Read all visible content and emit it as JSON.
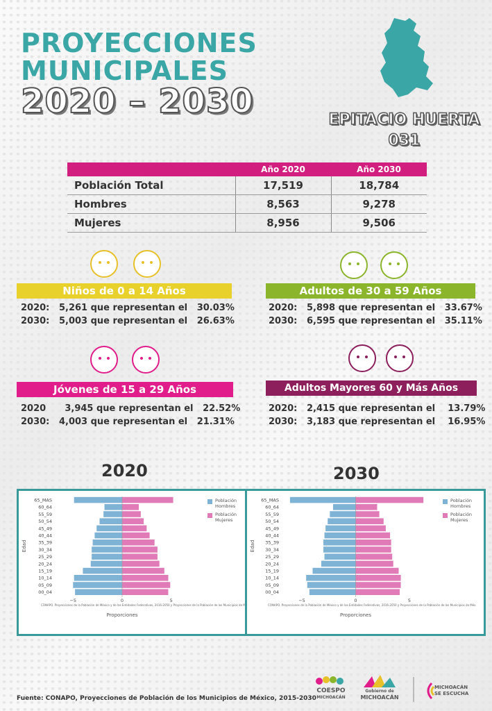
{
  "header": {
    "title_line1": "PROYECCIONES",
    "title_line2": "MUNICIPALES",
    "title_line3": "2020 – 2030",
    "municipality": "EPITACIO HUERTA",
    "code": "031"
  },
  "table": {
    "col_2020": "Año 2020",
    "col_2030": "Año 2030",
    "rows": [
      {
        "label": "Población Total",
        "v2020": "17,519",
        "v2030": "18,784"
      },
      {
        "label": "Hombres",
        "v2020": "8,563",
        "v2030": "9,278"
      },
      {
        "label": "Mujeres",
        "v2020": "8,956",
        "v2030": "9,506"
      }
    ]
  },
  "groups": {
    "ninos": {
      "title": "Niños de 0 a 14 Años",
      "color": "#e8d12a",
      "l1": {
        "year": "2020:",
        "text": "5,261 que representan el",
        "pct": "30.03%"
      },
      "l2": {
        "year": "2030:",
        "text": "5,003 que representan el",
        "pct": "26.63%"
      }
    },
    "adultos": {
      "title": "Adultos de 30 a 59 Años",
      "color": "#8bb52a",
      "l1": {
        "year": "2020:",
        "text": "5,898 que representan el",
        "pct": "33.67%"
      },
      "l2": {
        "year": "2030:",
        "text": "6,595 que representan el",
        "pct": "35.11%"
      }
    },
    "jovenes": {
      "title": "Jóvenes de 15 a 29 Años",
      "color": "#e01d8a",
      "l1": {
        "year": "2020",
        "text": "3,945 que representan el",
        "pct": "22.52%"
      },
      "l2": {
        "year": "2030:",
        "text": "4,003 que representan el",
        "pct": "21.31%"
      }
    },
    "mayores": {
      "title": "Adultos Mayores  60 y Más Años",
      "color": "#8c1f5c",
      "l1": {
        "year": "2020:",
        "text": "2,415 que representan el",
        "pct": "13.79%"
      },
      "l2": {
        "year": "2030:",
        "text": "3,183 que representan el",
        "pct": "16.95%"
      }
    }
  },
  "chart_data": [
    {
      "type": "bar",
      "title": "2020",
      "xlabel": "Proporciones",
      "ylabel": "Edad",
      "xlim": [
        -7,
        7
      ],
      "categories": [
        "65_MAS",
        "60_64",
        "55_59",
        "50_54",
        "45_49",
        "40_44",
        "35_39",
        "30_34",
        "25_29",
        "20_24",
        "15_19",
        "10_14",
        "05_09",
        "00_04"
      ],
      "series": [
        {
          "name": "Población Hombres",
          "values": [
            -4.9,
            -1.8,
            -1.9,
            -2.3,
            -2.6,
            -2.8,
            -3.0,
            -3.1,
            -3.1,
            -3.2,
            -4.0,
            -4.9,
            -5.0,
            -4.8
          ]
        },
        {
          "name": "Población Mujeres",
          "values": [
            5.2,
            1.7,
            1.9,
            2.2,
            2.5,
            2.8,
            3.3,
            3.6,
            3.6,
            3.8,
            4.3,
            4.7,
            4.9,
            4.7
          ]
        }
      ],
      "xticks": [
        "−5",
        "0",
        "5"
      ],
      "note": "CONAPO. Proyecciones de la Población de México y de las Entidades Federativas, 2016-2050 y Proyecciones de la Población de los Municipios de Méx"
    },
    {
      "type": "bar",
      "title": "2030",
      "xlabel": "Proporciones",
      "ylabel": "Edad",
      "xlim": [
        -7,
        7
      ],
      "categories": [
        "65_MAS",
        "60_64",
        "55_59",
        "50_54",
        "45_49",
        "40_44",
        "35_39",
        "30_34",
        "25_29",
        "20_24",
        "15_19",
        "10_14",
        "05_09",
        "00_04"
      ],
      "series": [
        {
          "name": "Población Hombres",
          "values": [
            -6.1,
            -2.1,
            -2.4,
            -2.6,
            -2.8,
            -2.9,
            -3.0,
            -3.0,
            -2.9,
            -3.2,
            -4.0,
            -4.6,
            -4.5,
            -4.3
          ]
        },
        {
          "name": "Población Mujeres",
          "values": [
            6.3,
            2.0,
            2.2,
            2.6,
            2.8,
            3.2,
            3.3,
            3.3,
            3.4,
            3.5,
            4.0,
            4.2,
            4.2,
            4.1
          ]
        }
      ],
      "xticks": [
        "−5",
        "0",
        "5"
      ],
      "note": "CONAPO. Proyecciones de la Población de México y de las Entidades Federativas, 2016-2050 y Proyecciones de la Población de los Municipios de Méx"
    }
  ],
  "source": "Fuente: CONAPO, Proyecciones de Población de los Municipios de México, 2015-2030",
  "logos": {
    "coespo1": "COESPO",
    "coespo2": "MICHOACÁN",
    "gob1": "Gobierno de",
    "gob2": "MICHOACÁN",
    "mse1": "MICHOACÁN",
    "mse2": "SE ESCUCHA"
  },
  "colors": {
    "teal": "#3aa7a6",
    "magenta": "#d21f7f",
    "hombres": "#7fb3d5",
    "mujeres": "#e07bb8"
  }
}
